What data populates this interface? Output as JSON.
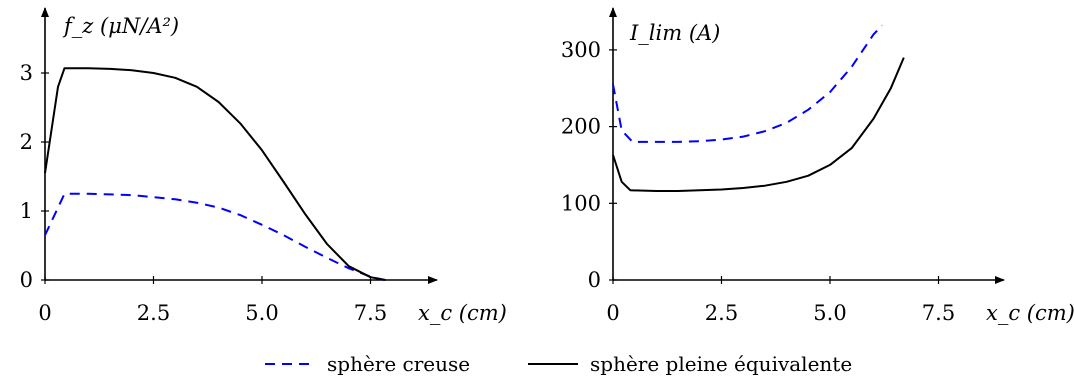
{
  "chart_data": [
    {
      "type": "line",
      "title": "",
      "ylabel": "f_z (μN/A²)",
      "xlabel": "x_c (cm)",
      "xlim": [
        0,
        8.5
      ],
      "ylim": [
        0,
        3.4
      ],
      "xticks": [
        "0",
        "2.5",
        "5.0",
        "7.5"
      ],
      "yticks": [
        "0",
        "1",
        "2",
        "3"
      ],
      "series": [
        {
          "name": "sphère creuse",
          "color": "#0000ff",
          "dash": "dashed",
          "x": [
            0,
            0.45,
            1.0,
            1.5,
            2.0,
            2.5,
            3.0,
            3.5,
            4.0,
            4.5,
            5.0,
            5.5,
            6.0,
            6.5,
            7.0,
            7.5,
            7.8
          ],
          "y": [
            0.65,
            1.25,
            1.25,
            1.24,
            1.23,
            1.2,
            1.17,
            1.12,
            1.05,
            0.94,
            0.8,
            0.65,
            0.48,
            0.32,
            0.17,
            0.05,
            0.0
          ]
        },
        {
          "name": "sphère pleine équivalente",
          "color": "#000000",
          "dash": "solid",
          "x": [
            0,
            0.3,
            0.45,
            1.0,
            1.5,
            2.0,
            2.5,
            3.0,
            3.5,
            4.0,
            4.5,
            5.0,
            5.5,
            6.0,
            6.5,
            7.0,
            7.5,
            7.85
          ],
          "y": [
            1.55,
            2.8,
            3.07,
            3.07,
            3.06,
            3.04,
            3.0,
            2.93,
            2.8,
            2.58,
            2.27,
            1.88,
            1.42,
            0.95,
            0.52,
            0.2,
            0.04,
            0.0
          ]
        }
      ]
    },
    {
      "type": "line",
      "title": "",
      "ylabel": "I_lim (A)",
      "xlabel": "x_c (cm)",
      "xlim": [
        0,
        9
      ],
      "ylim": [
        0,
        345
      ],
      "xticks": [
        "0",
        "2.5",
        "5.0",
        "7.5"
      ],
      "yticks": [
        "0",
        "100",
        "200",
        "300"
      ],
      "series": [
        {
          "name": "sphère creuse",
          "color": "#0000ff",
          "dash": "dashed",
          "x": [
            0,
            0.2,
            0.45,
            1.0,
            1.5,
            2.0,
            2.5,
            3.0,
            3.5,
            4.0,
            4.5,
            5.0,
            5.5,
            6.0,
            6.2
          ],
          "y": [
            255,
            195,
            180,
            180,
            180,
            181,
            183,
            187,
            194,
            205,
            222,
            245,
            278,
            320,
            332
          ]
        },
        {
          "name": "sphère pleine équivalente",
          "color": "#000000",
          "dash": "solid",
          "x": [
            0,
            0.2,
            0.4,
            1.0,
            1.5,
            2.0,
            2.5,
            3.0,
            3.5,
            4.0,
            4.5,
            5.0,
            5.5,
            6.0,
            6.4,
            6.7
          ],
          "y": [
            163,
            128,
            117,
            116,
            116,
            117,
            118,
            120,
            123,
            128,
            136,
            150,
            172,
            210,
            250,
            290
          ]
        }
      ]
    }
  ],
  "legend": {
    "items": [
      {
        "label": "sphère creuse",
        "color": "#0000ff",
        "dash": "dashed"
      },
      {
        "label": "sphère pleine équivalente",
        "color": "#000000",
        "dash": "solid"
      }
    ]
  }
}
